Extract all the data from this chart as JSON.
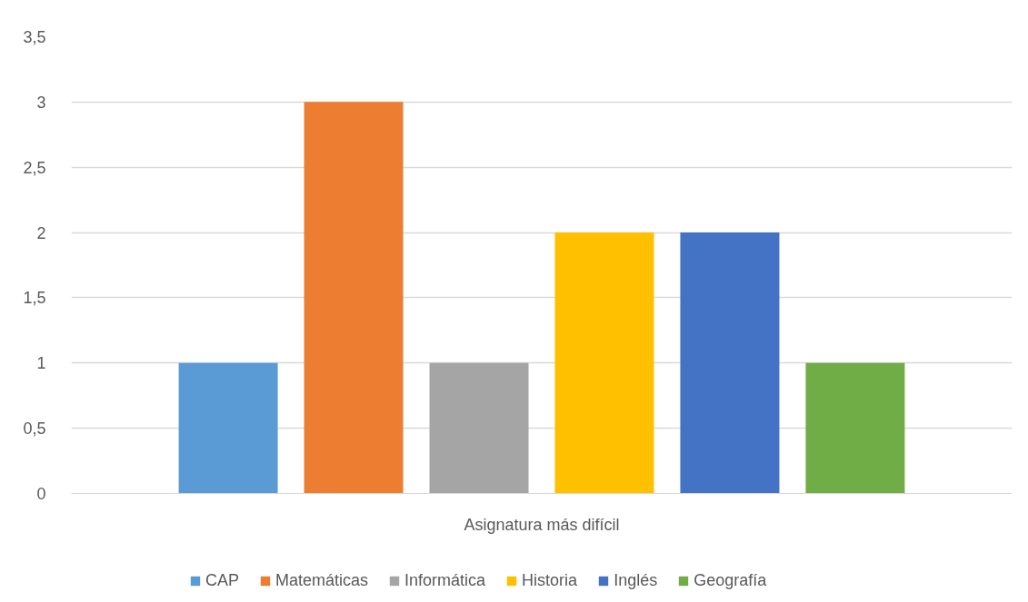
{
  "chart_data": {
    "type": "bar",
    "categories": [
      "Asignatura más difícil"
    ],
    "series": [
      {
        "name": "CAP",
        "color": "#5b9bd5",
        "values": [
          1
        ]
      },
      {
        "name": "Matemáticas",
        "color": "#ed7d31",
        "values": [
          3
        ]
      },
      {
        "name": "Informática",
        "color": "#a5a5a5",
        "values": [
          1
        ]
      },
      {
        "name": "Historia",
        "color": "#ffc000",
        "values": [
          2
        ]
      },
      {
        "name": "Inglés",
        "color": "#4472c4",
        "values": [
          2
        ]
      },
      {
        "name": "Geografía",
        "color": "#70ad47",
        "values": [
          1
        ]
      }
    ],
    "ylim": [
      0,
      3.5
    ],
    "yticks": [
      0,
      {
        "value": 0.5,
        "label": "0,5"
      },
      1,
      {
        "value": 1.5,
        "label": "1,5"
      },
      2,
      {
        "value": 2.5,
        "label": "2,5"
      },
      3,
      {
        "value": 3.5,
        "label": "3,5"
      }
    ],
    "grid": "y",
    "legend": "bottom"
  }
}
